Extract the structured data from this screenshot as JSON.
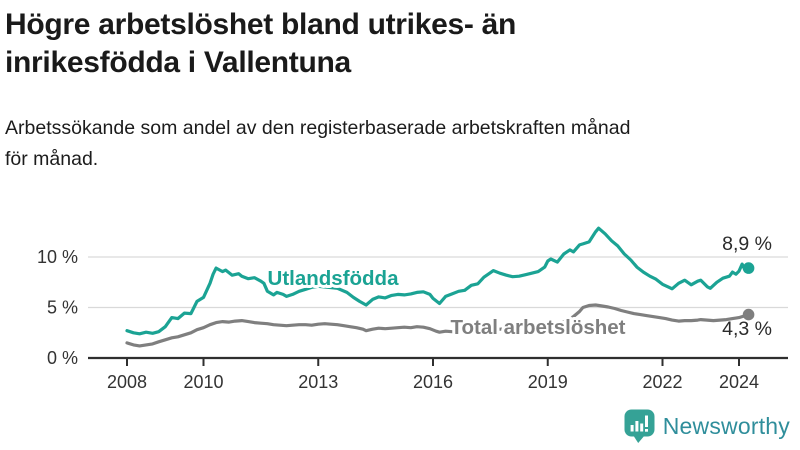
{
  "header": {
    "title": "Högre arbetslöshet bland utrikes- än\ninrikesfödda i Vallentuna",
    "subtitle": "Arbetssökande som andel av den registerbaserade arbetskraften månad\nför månad."
  },
  "colors": {
    "teal_line": "#1BA394",
    "gray_line": "#7F7F7F",
    "axis": "#2F2F2F",
    "gridline": "#D9D9D9",
    "tick_text": "#333333",
    "end_label_text": "#2B2B2B",
    "logo_icon": "#35A296",
    "logo_text": "#2F8E9B"
  },
  "chart_data": {
    "type": "line",
    "title": "Högre arbetslöshet bland utrikes- än inrikesfödda i Vallentuna",
    "subtitle": "Arbetssökande som andel av den registerbaserade arbetskraften månad för månad.",
    "x_unit": "year (monthly data)",
    "ylabel": "",
    "xlabel": "",
    "ylim": [
      0,
      13.5
    ],
    "xlim": [
      2007,
      2025.3
    ],
    "grid": "horizontal",
    "legend_position": "inline-labels",
    "yticks": [
      {
        "value": 0,
        "label": "0 %"
      },
      {
        "value": 5,
        "label": "5 %"
      },
      {
        "value": 10,
        "label": "10 %"
      }
    ],
    "xticks": [
      {
        "value": 2008,
        "label": "2008"
      },
      {
        "value": 2010,
        "label": "2010"
      },
      {
        "value": 2013,
        "label": "2013"
      },
      {
        "value": 2016,
        "label": "2016"
      },
      {
        "value": 2019,
        "label": "2019"
      },
      {
        "value": 2022,
        "label": "2022"
      },
      {
        "value": 2024,
        "label": "2024"
      }
    ],
    "series": [
      {
        "name": "Utlandsfödda",
        "label": "Utlandsfödda",
        "end_label": "8,9 %",
        "end_value": 8.9,
        "color": "#1BA394",
        "points": [
          [
            2008.0,
            2.7
          ],
          [
            2008.17,
            2.5
          ],
          [
            2008.33,
            2.4
          ],
          [
            2008.5,
            2.55
          ],
          [
            2008.67,
            2.45
          ],
          [
            2008.83,
            2.6
          ],
          [
            2009.0,
            3.1
          ],
          [
            2009.17,
            4.0
          ],
          [
            2009.33,
            3.9
          ],
          [
            2009.5,
            4.45
          ],
          [
            2009.67,
            4.4
          ],
          [
            2009.83,
            5.6
          ],
          [
            2010.0,
            6.0
          ],
          [
            2010.17,
            7.4
          ],
          [
            2010.25,
            8.3
          ],
          [
            2010.33,
            8.9
          ],
          [
            2010.5,
            8.55
          ],
          [
            2010.58,
            8.7
          ],
          [
            2010.75,
            8.2
          ],
          [
            2010.92,
            8.35
          ],
          [
            2011.0,
            8.1
          ],
          [
            2011.17,
            7.85
          ],
          [
            2011.33,
            7.95
          ],
          [
            2011.5,
            7.6
          ],
          [
            2011.58,
            7.4
          ],
          [
            2011.67,
            6.6
          ],
          [
            2011.83,
            6.25
          ],
          [
            2011.92,
            6.5
          ],
          [
            2012.08,
            6.3
          ],
          [
            2012.17,
            6.1
          ],
          [
            2012.33,
            6.3
          ],
          [
            2012.5,
            6.6
          ],
          [
            2012.67,
            6.8
          ],
          [
            2012.83,
            7.0
          ],
          [
            2013.0,
            7.1
          ],
          [
            2013.25,
            7.0
          ],
          [
            2013.5,
            6.9
          ],
          [
            2013.75,
            6.5
          ],
          [
            2013.92,
            6.0
          ],
          [
            2014.08,
            5.6
          ],
          [
            2014.25,
            5.25
          ],
          [
            2014.42,
            5.8
          ],
          [
            2014.58,
            6.05
          ],
          [
            2014.75,
            5.95
          ],
          [
            2014.92,
            6.2
          ],
          [
            2015.08,
            6.3
          ],
          [
            2015.25,
            6.25
          ],
          [
            2015.42,
            6.35
          ],
          [
            2015.58,
            6.5
          ],
          [
            2015.75,
            6.55
          ],
          [
            2015.92,
            6.3
          ],
          [
            2016.0,
            5.9
          ],
          [
            2016.17,
            5.4
          ],
          [
            2016.33,
            6.1
          ],
          [
            2016.5,
            6.35
          ],
          [
            2016.67,
            6.6
          ],
          [
            2016.83,
            6.7
          ],
          [
            2017.0,
            7.2
          ],
          [
            2017.17,
            7.35
          ],
          [
            2017.33,
            8.0
          ],
          [
            2017.5,
            8.45
          ],
          [
            2017.58,
            8.65
          ],
          [
            2017.75,
            8.4
          ],
          [
            2017.92,
            8.2
          ],
          [
            2018.08,
            8.05
          ],
          [
            2018.25,
            8.1
          ],
          [
            2018.42,
            8.25
          ],
          [
            2018.58,
            8.4
          ],
          [
            2018.75,
            8.55
          ],
          [
            2018.92,
            9.0
          ],
          [
            2019.0,
            9.6
          ],
          [
            2019.08,
            9.8
          ],
          [
            2019.25,
            9.5
          ],
          [
            2019.42,
            10.3
          ],
          [
            2019.58,
            10.7
          ],
          [
            2019.67,
            10.5
          ],
          [
            2019.83,
            11.2
          ],
          [
            2019.92,
            11.3
          ],
          [
            2020.08,
            11.5
          ],
          [
            2020.25,
            12.5
          ],
          [
            2020.33,
            12.85
          ],
          [
            2020.5,
            12.3
          ],
          [
            2020.67,
            11.6
          ],
          [
            2020.83,
            11.1
          ],
          [
            2021.0,
            10.3
          ],
          [
            2021.17,
            9.7
          ],
          [
            2021.33,
            9.0
          ],
          [
            2021.5,
            8.5
          ],
          [
            2021.67,
            8.1
          ],
          [
            2021.83,
            7.8
          ],
          [
            2022.0,
            7.3
          ],
          [
            2022.17,
            7.0
          ],
          [
            2022.25,
            6.85
          ],
          [
            2022.42,
            7.4
          ],
          [
            2022.58,
            7.7
          ],
          [
            2022.75,
            7.25
          ],
          [
            2022.92,
            7.6
          ],
          [
            2023.0,
            7.7
          ],
          [
            2023.17,
            7.05
          ],
          [
            2023.25,
            6.9
          ],
          [
            2023.42,
            7.5
          ],
          [
            2023.58,
            7.9
          ],
          [
            2023.75,
            8.1
          ],
          [
            2023.83,
            8.5
          ],
          [
            2023.92,
            8.3
          ],
          [
            2024.0,
            8.6
          ],
          [
            2024.08,
            9.3
          ],
          [
            2024.17,
            8.6
          ],
          [
            2024.25,
            8.9
          ]
        ]
      },
      {
        "name": "Total arbetslöshet",
        "label": "Total arbetslöshet",
        "end_label": "4,3 %",
        "end_value": 4.3,
        "color": "#7F7F7F",
        "points": [
          [
            2008.0,
            1.5
          ],
          [
            2008.17,
            1.3
          ],
          [
            2008.33,
            1.2
          ],
          [
            2008.5,
            1.3
          ],
          [
            2008.67,
            1.4
          ],
          [
            2008.83,
            1.6
          ],
          [
            2009.0,
            1.8
          ],
          [
            2009.17,
            2.0
          ],
          [
            2009.33,
            2.1
          ],
          [
            2009.5,
            2.3
          ],
          [
            2009.67,
            2.5
          ],
          [
            2009.83,
            2.8
          ],
          [
            2010.0,
            3.0
          ],
          [
            2010.17,
            3.3
          ],
          [
            2010.33,
            3.5
          ],
          [
            2010.5,
            3.6
          ],
          [
            2010.67,
            3.55
          ],
          [
            2010.83,
            3.65
          ],
          [
            2011.0,
            3.7
          ],
          [
            2011.17,
            3.6
          ],
          [
            2011.33,
            3.5
          ],
          [
            2011.5,
            3.45
          ],
          [
            2011.67,
            3.4
          ],
          [
            2011.83,
            3.3
          ],
          [
            2012.0,
            3.25
          ],
          [
            2012.17,
            3.2
          ],
          [
            2012.33,
            3.25
          ],
          [
            2012.5,
            3.3
          ],
          [
            2012.67,
            3.3
          ],
          [
            2012.83,
            3.25
          ],
          [
            2013.0,
            3.35
          ],
          [
            2013.17,
            3.4
          ],
          [
            2013.33,
            3.35
          ],
          [
            2013.5,
            3.3
          ],
          [
            2013.67,
            3.2
          ],
          [
            2013.83,
            3.1
          ],
          [
            2014.0,
            3.0
          ],
          [
            2014.17,
            2.85
          ],
          [
            2014.25,
            2.7
          ],
          [
            2014.42,
            2.85
          ],
          [
            2014.58,
            2.95
          ],
          [
            2014.75,
            2.9
          ],
          [
            2014.92,
            2.95
          ],
          [
            2015.08,
            3.0
          ],
          [
            2015.25,
            3.05
          ],
          [
            2015.42,
            3.0
          ],
          [
            2015.58,
            3.1
          ],
          [
            2015.75,
            3.05
          ],
          [
            2015.92,
            2.9
          ],
          [
            2016.08,
            2.65
          ],
          [
            2016.17,
            2.55
          ],
          [
            2016.33,
            2.65
          ],
          [
            2016.5,
            2.6
          ],
          [
            2016.75,
            2.65
          ],
          [
            2017.0,
            2.7
          ],
          [
            2017.25,
            2.75
          ],
          [
            2017.5,
            2.8
          ],
          [
            2017.75,
            2.85
          ],
          [
            2018.0,
            2.9
          ],
          [
            2018.25,
            2.95
          ],
          [
            2018.5,
            3.0
          ],
          [
            2018.75,
            3.1
          ],
          [
            2019.0,
            3.2
          ],
          [
            2019.25,
            3.4
          ],
          [
            2019.5,
            3.7
          ],
          [
            2019.67,
            4.1
          ],
          [
            2019.83,
            4.6
          ],
          [
            2019.92,
            5.0
          ],
          [
            2020.08,
            5.2
          ],
          [
            2020.25,
            5.25
          ],
          [
            2020.42,
            5.15
          ],
          [
            2020.58,
            5.05
          ],
          [
            2020.75,
            4.9
          ],
          [
            2020.92,
            4.7
          ],
          [
            2021.08,
            4.55
          ],
          [
            2021.25,
            4.4
          ],
          [
            2021.42,
            4.3
          ],
          [
            2021.58,
            4.2
          ],
          [
            2021.75,
            4.1
          ],
          [
            2021.92,
            4.0
          ],
          [
            2022.08,
            3.9
          ],
          [
            2022.25,
            3.75
          ],
          [
            2022.42,
            3.65
          ],
          [
            2022.58,
            3.7
          ],
          [
            2022.75,
            3.7
          ],
          [
            2022.92,
            3.75
          ],
          [
            2023.0,
            3.8
          ],
          [
            2023.17,
            3.75
          ],
          [
            2023.33,
            3.7
          ],
          [
            2023.5,
            3.75
          ],
          [
            2023.67,
            3.8
          ],
          [
            2023.83,
            3.9
          ],
          [
            2023.92,
            3.95
          ],
          [
            2024.0,
            4.0
          ],
          [
            2024.08,
            4.1
          ],
          [
            2024.17,
            4.2
          ],
          [
            2024.25,
            4.3
          ]
        ]
      }
    ]
  },
  "footer": {
    "brand": "Newsworthy",
    "logo_icon": "bar-chart-speech-bubble"
  }
}
